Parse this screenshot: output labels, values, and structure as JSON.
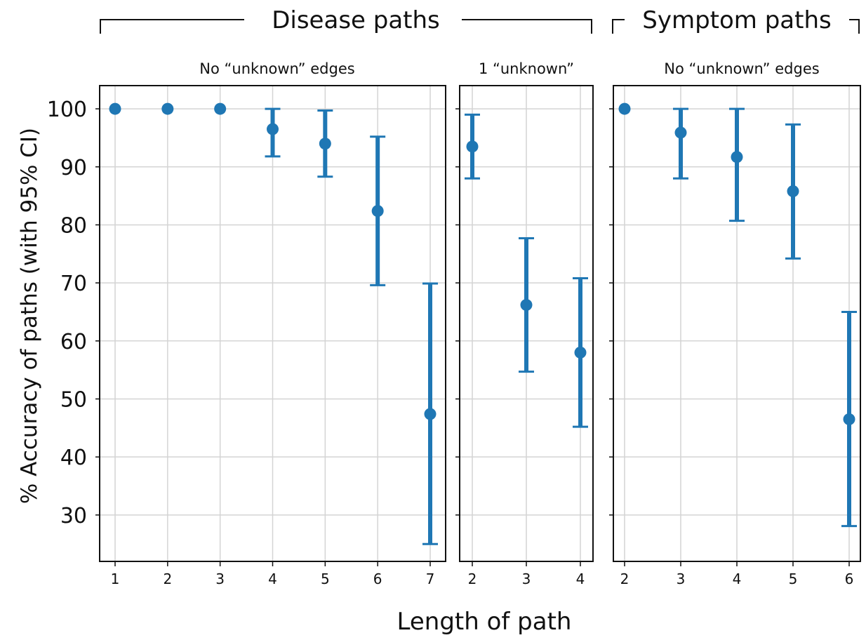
{
  "header": {
    "left_group_title": "Disease paths",
    "right_group_title": "Symptom paths"
  },
  "chart_data": {
    "type": "scatter",
    "ylabel": "% Accuracy of paths (with 95% CI)",
    "xlabel": "Length of path",
    "ylim": [
      22,
      104
    ],
    "y_ticks": [
      30,
      40,
      50,
      60,
      70,
      80,
      90,
      100
    ],
    "grid": true,
    "color": "#1f77b4",
    "panels": [
      {
        "group": "Disease paths",
        "subtitle": "No “unknown” edges",
        "x": [
          1,
          2,
          3,
          4,
          5,
          6,
          7
        ],
        "y": [
          100,
          100,
          100,
          96.5,
          94,
          82.4,
          47.4
        ],
        "ci_low": [
          100,
          100,
          100,
          91.8,
          88.3,
          69.6,
          25.0
        ],
        "ci_high": [
          100,
          100,
          100,
          100,
          99.7,
          95.2,
          69.9
        ]
      },
      {
        "group": "Disease paths",
        "subtitle": "1 “unknown”",
        "x": [
          2,
          3,
          4
        ],
        "y": [
          93.5,
          66.2,
          58.0
        ],
        "ci_low": [
          88.0,
          54.7,
          45.2
        ],
        "ci_high": [
          99.0,
          77.7,
          70.8
        ]
      },
      {
        "group": "Symptom paths",
        "subtitle": "No “unknown” edges",
        "x": [
          2,
          3,
          4,
          5,
          6
        ],
        "y": [
          100,
          95.9,
          91.7,
          85.8,
          46.5
        ],
        "ci_low": [
          100,
          88.0,
          80.7,
          74.2,
          28.1
        ],
        "ci_high": [
          100,
          100,
          100,
          97.3,
          65.0
        ]
      }
    ]
  }
}
